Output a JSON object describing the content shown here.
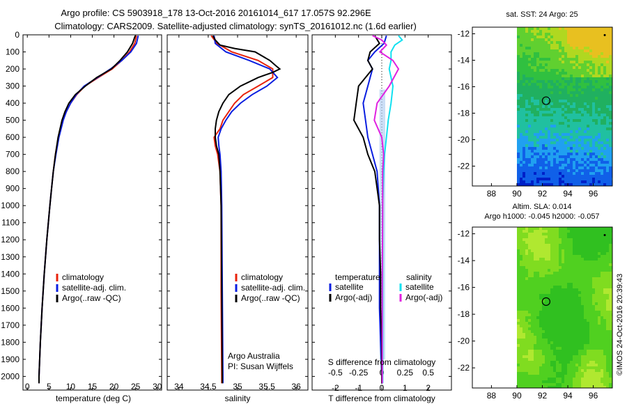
{
  "header": {
    "line1": "Argo profile: CS 5903918_178 13-Oct-2016 20161014_617 17.057S 92.296E",
    "line2": "Climatology: CARS2009. Satellite-adjusted climatology: synTS_20161012.nc (1.6d earlier)"
  },
  "colors": {
    "climatology": "#e8220a",
    "satellite": "#0a1ee0",
    "argo": "#000000",
    "sal_sat": "#10e0f0",
    "sal_argo": "#e020e0"
  },
  "chart_data": [
    {
      "type": "line",
      "title": "",
      "xlabel": "temperature (deg C)",
      "ylabel": "",
      "xlim": [
        -1,
        31
      ],
      "ylim": [
        2080,
        0
      ],
      "x_ticks": [
        "0",
        "5",
        "10",
        "15",
        "20",
        "25",
        "30"
      ],
      "y_ticks": [
        "0",
        "100",
        "200",
        "300",
        "400",
        "500",
        "600",
        "700",
        "800",
        "900",
        "1000",
        "1100",
        "1200",
        "1300",
        "1400",
        "1500",
        "1600",
        "1700",
        "1800",
        "1900",
        "2000"
      ],
      "legend": [
        "climatology",
        "satellite-adj. clim.",
        "Argo(..raw -QC)"
      ],
      "series": [
        {
          "name": "climatology",
          "color": "#e8220a",
          "depth": [
            5,
            50,
            100,
            150,
            200,
            250,
            300,
            350,
            400,
            450,
            500,
            600,
            700,
            800,
            900,
            1000,
            1200,
            1400,
            1600,
            1800,
            2000,
            2040
          ],
          "values": [
            25.2,
            24.8,
            23.6,
            21.8,
            19.6,
            16.4,
            13.3,
            11.4,
            10.0,
            9.0,
            8.2,
            7.2,
            6.5,
            6.0,
            5.6,
            5.2,
            4.5,
            3.9,
            3.4,
            3.0,
            2.7,
            2.7
          ]
        },
        {
          "name": "satellite-adj. clim.",
          "color": "#0a1ee0",
          "depth": [
            5,
            50,
            100,
            150,
            200,
            250,
            300,
            350,
            400,
            450,
            500,
            600,
            700,
            800,
            900,
            1000,
            1200,
            1400,
            1600,
            1800,
            2000,
            2040
          ],
          "values": [
            25.6,
            25.2,
            23.9,
            21.8,
            19.2,
            16.2,
            13.1,
            11.3,
            10.0,
            9.0,
            8.3,
            7.3,
            6.6,
            6.0,
            5.6,
            5.2,
            4.5,
            3.9,
            3.4,
            3.0,
            2.7,
            2.7
          ]
        },
        {
          "name": "Argo(..raw -QC)",
          "color": "#000000",
          "depth": [
            5,
            20,
            50,
            100,
            150,
            200,
            250,
            300,
            350,
            400,
            450,
            500,
            600,
            700,
            800,
            900,
            1000,
            1200,
            1400,
            1600,
            1800,
            2000,
            2040
          ],
          "values": [
            24.9,
            24.7,
            24.3,
            23.1,
            21.4,
            19.4,
            16.0,
            13.4,
            11.1,
            9.6,
            8.7,
            8.0,
            7.1,
            6.5,
            6.0,
            5.6,
            5.2,
            4.5,
            3.9,
            3.4,
            3.0,
            2.7,
            2.7
          ]
        }
      ]
    },
    {
      "type": "line",
      "xlabel": "salinity",
      "xlim": [
        33.8,
        36.2
      ],
      "ylim": [
        2080,
        0
      ],
      "x_ticks": [
        "34",
        "34.5",
        "35",
        "35.5",
        "36"
      ],
      "legend": [
        "climatology",
        "satellite-adj. clim.",
        "Argo(..raw -QC)"
      ],
      "annotation": [
        "Argo Australia",
        "PI: Susan Wijffels"
      ],
      "series": [
        {
          "name": "climatology",
          "color": "#e8220a",
          "depth": [
            5,
            50,
            100,
            150,
            200,
            250,
            300,
            350,
            400,
            450,
            500,
            550,
            600,
            650,
            700,
            800,
            1000,
            1500,
            2000,
            2040
          ],
          "values": [
            34.55,
            34.65,
            34.9,
            35.35,
            35.6,
            35.6,
            35.35,
            35.1,
            34.95,
            34.85,
            34.75,
            34.7,
            34.6,
            34.62,
            34.66,
            34.7,
            34.72,
            34.72,
            34.73,
            34.73
          ]
        },
        {
          "name": "satellite-adj. clim.",
          "color": "#0a1ee0",
          "depth": [
            5,
            50,
            100,
            150,
            200,
            250,
            300,
            350,
            400,
            450,
            500,
            550,
            600,
            650,
            700,
            800,
            1000,
            1500,
            2000,
            2040
          ],
          "values": [
            34.6,
            34.62,
            34.8,
            35.2,
            35.55,
            35.68,
            35.5,
            35.25,
            35.05,
            34.9,
            34.8,
            34.72,
            34.67,
            34.68,
            34.7,
            34.72,
            34.73,
            34.74,
            34.75,
            34.75
          ]
        },
        {
          "name": "Argo(..raw -QC)",
          "color": "#000000",
          "depth": [
            5,
            30,
            60,
            80,
            100,
            150,
            180,
            200,
            220,
            250,
            300,
            350,
            400,
            450,
            500,
            550,
            600,
            650,
            700,
            800,
            1000,
            1500,
            2000,
            2040
          ],
          "values": [
            34.58,
            34.62,
            34.7,
            34.95,
            35.3,
            35.55,
            35.65,
            35.72,
            35.6,
            35.35,
            35.05,
            34.85,
            34.75,
            34.68,
            34.64,
            34.62,
            34.62,
            34.64,
            34.68,
            34.7,
            34.72,
            34.73,
            34.74,
            34.74
          ]
        }
      ]
    },
    {
      "type": "line",
      "xlabel": "T difference from climatology",
      "title_bottom": "S difference from climatology",
      "xlim": [
        -3,
        3
      ],
      "ylim": [
        2080,
        0
      ],
      "x_ticks": [
        "-2",
        "-1",
        "0",
        "1",
        "2"
      ],
      "s_ticks": [
        "-0.5",
        "-0.25",
        "0",
        "0.25",
        "0.5"
      ],
      "legend": {
        "temperature": [
          "satellite",
          "Argo(-adj)"
        ],
        "salinity": [
          "satellite",
          "Argo(-adj)"
        ]
      },
      "legend_headers": [
        "temperature",
        "salinity"
      ],
      "series": [
        {
          "name": "T satellite",
          "color": "#0a1ee0",
          "depth": [
            5,
            50,
            100,
            150,
            200,
            250,
            300,
            400,
            500,
            600,
            700,
            800,
            1000,
            1200,
            1400,
            1600,
            1800,
            2000,
            2040
          ],
          "values": [
            0.2,
            0.1,
            -0.3,
            -0.6,
            -0.4,
            -0.5,
            -0.6,
            -0.8,
            -0.7,
            -0.6,
            -0.4,
            -0.2,
            -0.1,
            -0.1,
            -0.1,
            -0.1,
            -0.05,
            0,
            0
          ]
        },
        {
          "name": "T Argo(-adj)",
          "color": "#000000",
          "depth": [
            5,
            50,
            100,
            150,
            200,
            250,
            300,
            400,
            500,
            600,
            700,
            800,
            1000,
            1200,
            1400,
            1600,
            1800,
            2000,
            2040
          ],
          "values": [
            -0.3,
            -0.1,
            -0.5,
            -0.6,
            -0.4,
            -0.7,
            -1.0,
            -1.1,
            -1.2,
            -0.8,
            -0.6,
            -0.3,
            -0.1,
            -0.1,
            -0.05,
            -0.05,
            0,
            0,
            0
          ]
        },
        {
          "name": "S satellite",
          "color": "#10e0f0",
          "depth": [
            5,
            30,
            60,
            100,
            150,
            200,
            300,
            400,
            500,
            600,
            700,
            800,
            1000,
            1500,
            2000,
            2040
          ],
          "scale": "s",
          "values": [
            0.18,
            0.22,
            0.14,
            0.1,
            0.1,
            0.08,
            0.12,
            0.1,
            0.07,
            0.05,
            0.03,
            0.02,
            0.01,
            0.01,
            0.01,
            0.01
          ]
        },
        {
          "name": "S Argo(-adj)",
          "color": "#e020e0",
          "depth": [
            5,
            30,
            60,
            100,
            150,
            200,
            300,
            400,
            500,
            600,
            700,
            800,
            1000,
            1500,
            2000,
            2040
          ],
          "scale": "s",
          "values": [
            -0.1,
            0.0,
            0.05,
            -0.02,
            0.12,
            0.18,
            0.08,
            -0.05,
            -0.08,
            0.0,
            0.02,
            0.01,
            0.01,
            0.005,
            0.005,
            0.005
          ]
        }
      ]
    },
    {
      "type": "heatmap",
      "title": "sat. SST: 24  Argo: 25",
      "x_ticks": [
        "88",
        "90",
        "92",
        "94",
        "96"
      ],
      "y_ticks": [
        "-12",
        "-14",
        "-16",
        "-18",
        "-20",
        "-22"
      ],
      "xlim": [
        86.5,
        97.5
      ],
      "ylim": [
        -23.5,
        -11.5
      ],
      "marker": {
        "lon": 92.296,
        "lat": -17.057
      }
    },
    {
      "type": "heatmap",
      "title": "Altim. SLA: 0.014",
      "subtitle": "Argo h1000: -0.045 h2000: -0.057",
      "x_ticks": [
        "88",
        "90",
        "92",
        "94",
        "96"
      ],
      "y_ticks": [
        "-12",
        "-14",
        "-16",
        "-18",
        "-20",
        "-22"
      ],
      "xlim": [
        86.5,
        97.5
      ],
      "ylim": [
        -23.5,
        -11.5
      ],
      "marker": {
        "lon": 92.296,
        "lat": -17.057
      }
    }
  ],
  "footer": {
    "imos_stamp": "©IMOS 24-Oct-2016 20:39:43"
  }
}
